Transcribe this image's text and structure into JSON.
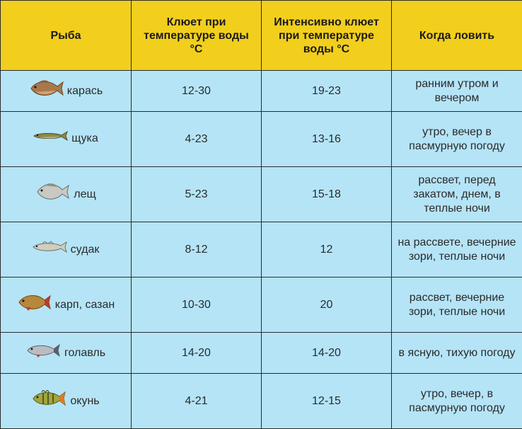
{
  "table": {
    "headers": {
      "fish": "Рыба",
      "bite": "Клюет при температуре воды °С",
      "intense": "Интенсивно клюет при температуре воды °С",
      "when": "Когда ловить"
    },
    "rows": [
      {
        "fish": "карась",
        "icon": "crucian-carp-icon",
        "bite": "12-30",
        "intense": "19-23",
        "when": "ранним утром и вечером"
      },
      {
        "fish": "щука",
        "icon": "pike-icon",
        "bite": "4-23",
        "intense": "13-16",
        "when": "утро, вечер в пасмурную погоду"
      },
      {
        "fish": "лещ",
        "icon": "bream-icon",
        "bite": "5-23",
        "intense": "15-18",
        "when": "рассвет, перед закатом, днем, в теплые ночи"
      },
      {
        "fish": "судак",
        "icon": "zander-icon",
        "bite": "8-12",
        "intense": "12",
        "when": "на рассвете, вечерние зори, теплые ночи"
      },
      {
        "fish": "карп, сазан",
        "icon": "carp-icon",
        "bite": "10-30",
        "intense": "20",
        "when": "рассвет, вечерние зори, теплые ночи"
      },
      {
        "fish": "голавль",
        "icon": "chub-icon",
        "bite": "14-20",
        "intense": "14-20",
        "when": "в ясную, тихую погоду"
      },
      {
        "fish": "окунь",
        "icon": "perch-icon",
        "bite": "4-21",
        "intense": "12-15",
        "when": "утро, вечер, в пасмурную погоду"
      }
    ]
  }
}
